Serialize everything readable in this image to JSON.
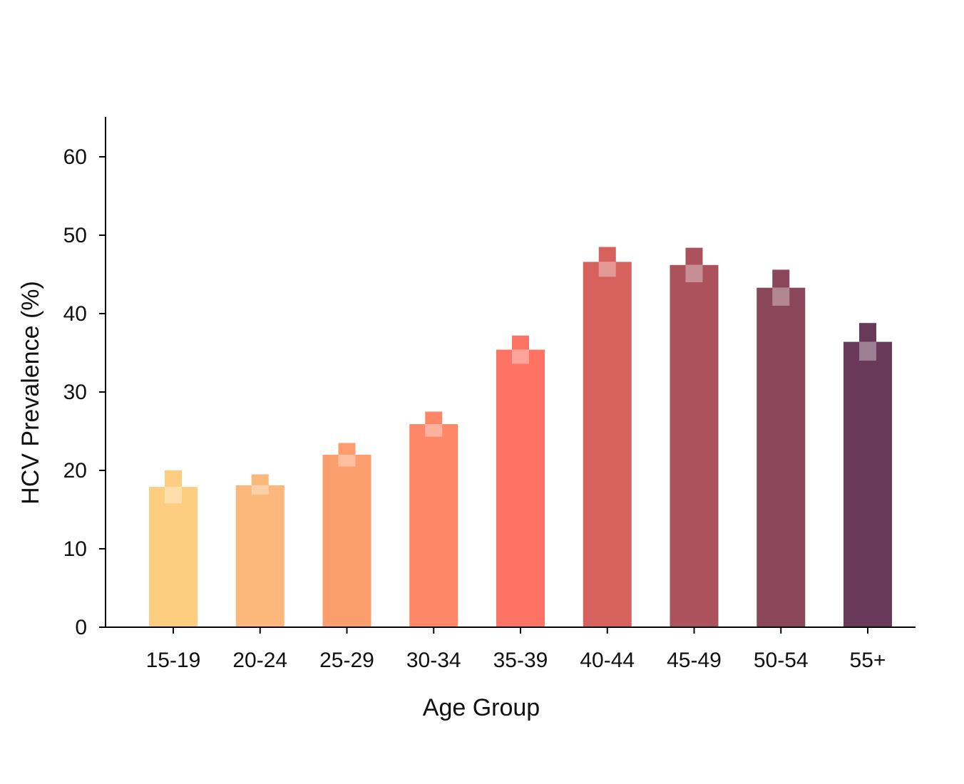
{
  "chart_data": {
    "type": "bar",
    "title": "",
    "xlabel": "Age Group",
    "ylabel": "HCV Prevalence (%)",
    "ylim": [
      0,
      65
    ],
    "yticks": [
      0,
      10,
      20,
      30,
      40,
      50,
      60
    ],
    "grid": false,
    "legend": "none",
    "categories": [
      "15-19",
      "20-24",
      "25-29",
      "30-34",
      "35-39",
      "40-44",
      "45-49",
      "50-54",
      "55+"
    ],
    "values": [
      17.9,
      18.1,
      22.0,
      25.9,
      35.4,
      46.6,
      46.2,
      43.3,
      36.4
    ],
    "range_upper": [
      20.0,
      19.5,
      23.5,
      27.5,
      37.2,
      48.5,
      48.4,
      45.6,
      38.8
    ],
    "range_lower": [
      15.8,
      16.9,
      20.5,
      24.3,
      33.6,
      44.7,
      44.0,
      41.0,
      34.0
    ],
    "colors": [
      "#FECE80",
      "#FCB77A",
      "#FB9D6D",
      "#FE8767",
      "#FE7363",
      "#D6615D",
      "#AB525C",
      "#8A465B",
      "#69395A"
    ]
  }
}
